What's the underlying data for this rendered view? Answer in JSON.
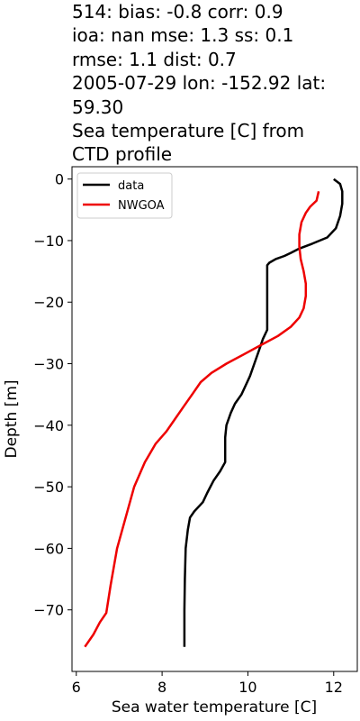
{
  "title_lines": [
    "514: bias: -0.8  corr: 0.9",
    "ioa: nan  mse: 1.3  ss: 0.1",
    "rmse: 1.1  dist: 0.7",
    "2005-07-29 lon: -152.92 lat:",
    "59.30",
    "Sea temperature [C] from",
    "CTD profile"
  ],
  "chart_data": {
    "type": "line",
    "title": "514: bias: -0.8  corr: 0.9 ioa: nan  mse: 1.3  ss: 0.1 rmse: 1.1  dist: 0.7 2005-07-29 lon: -152.92 lat: 59.30 Sea temperature [C] from CTD profile",
    "xlabel": "Sea water temperature [C]",
    "ylabel": "Depth [m]",
    "xlim": [
      5.9,
      12.55
    ],
    "ylim": [
      -80,
      2
    ],
    "xticks": [
      6,
      8,
      10,
      12
    ],
    "yticks": [
      0,
      -10,
      -20,
      -30,
      -40,
      -50,
      -60,
      -70
    ],
    "grid": false,
    "legend": "top-left",
    "series": [
      {
        "name": "data",
        "color": "#000000",
        "points": [
          [
            12.0,
            0.0
          ],
          [
            12.15,
            -0.8
          ],
          [
            12.2,
            -2
          ],
          [
            12.2,
            -4
          ],
          [
            12.15,
            -6
          ],
          [
            12.05,
            -8
          ],
          [
            11.85,
            -9.5
          ],
          [
            11.5,
            -10.5
          ],
          [
            11.2,
            -11.3
          ],
          [
            11.0,
            -12.0
          ],
          [
            10.85,
            -12.5
          ],
          [
            10.65,
            -13.0
          ],
          [
            10.5,
            -13.6
          ],
          [
            10.45,
            -14.0
          ],
          [
            10.45,
            -17
          ],
          [
            10.45,
            -22
          ],
          [
            10.45,
            -24.5
          ],
          [
            10.35,
            -26
          ],
          [
            10.25,
            -28
          ],
          [
            10.15,
            -30
          ],
          [
            10.05,
            -32
          ],
          [
            9.95,
            -33.5
          ],
          [
            9.85,
            -35
          ],
          [
            9.7,
            -36.5
          ],
          [
            9.6,
            -38
          ],
          [
            9.5,
            -40
          ],
          [
            9.47,
            -42
          ],
          [
            9.47,
            -46
          ],
          [
            9.35,
            -47.5
          ],
          [
            9.2,
            -49
          ],
          [
            9.05,
            -51
          ],
          [
            8.95,
            -52.5
          ],
          [
            8.75,
            -54
          ],
          [
            8.65,
            -55
          ],
          [
            8.6,
            -57
          ],
          [
            8.55,
            -60
          ],
          [
            8.53,
            -65
          ],
          [
            8.52,
            -70
          ],
          [
            8.52,
            -76
          ]
        ]
      },
      {
        "name": "NWGOA",
        "color": "#ee0000",
        "points": [
          [
            11.65,
            -2
          ],
          [
            11.6,
            -3.5
          ],
          [
            11.45,
            -4.5
          ],
          [
            11.35,
            -5.5
          ],
          [
            11.25,
            -7
          ],
          [
            11.2,
            -9
          ],
          [
            11.2,
            -11
          ],
          [
            11.23,
            -13
          ],
          [
            11.3,
            -15
          ],
          [
            11.35,
            -17
          ],
          [
            11.35,
            -19
          ],
          [
            11.3,
            -21
          ],
          [
            11.2,
            -22.5
          ],
          [
            11.0,
            -24
          ],
          [
            10.7,
            -25.5
          ],
          [
            10.3,
            -27
          ],
          [
            9.9,
            -28.5
          ],
          [
            9.5,
            -30
          ],
          [
            9.15,
            -31.5
          ],
          [
            8.9,
            -33
          ],
          [
            8.7,
            -35
          ],
          [
            8.5,
            -37
          ],
          [
            8.3,
            -39
          ],
          [
            8.1,
            -41
          ],
          [
            7.85,
            -43
          ],
          [
            7.6,
            -46
          ],
          [
            7.35,
            -50
          ],
          [
            7.15,
            -55
          ],
          [
            6.95,
            -60
          ],
          [
            6.8,
            -66
          ],
          [
            6.7,
            -70.5
          ],
          [
            6.55,
            -72
          ],
          [
            6.4,
            -74
          ],
          [
            6.2,
            -76
          ]
        ]
      }
    ]
  }
}
